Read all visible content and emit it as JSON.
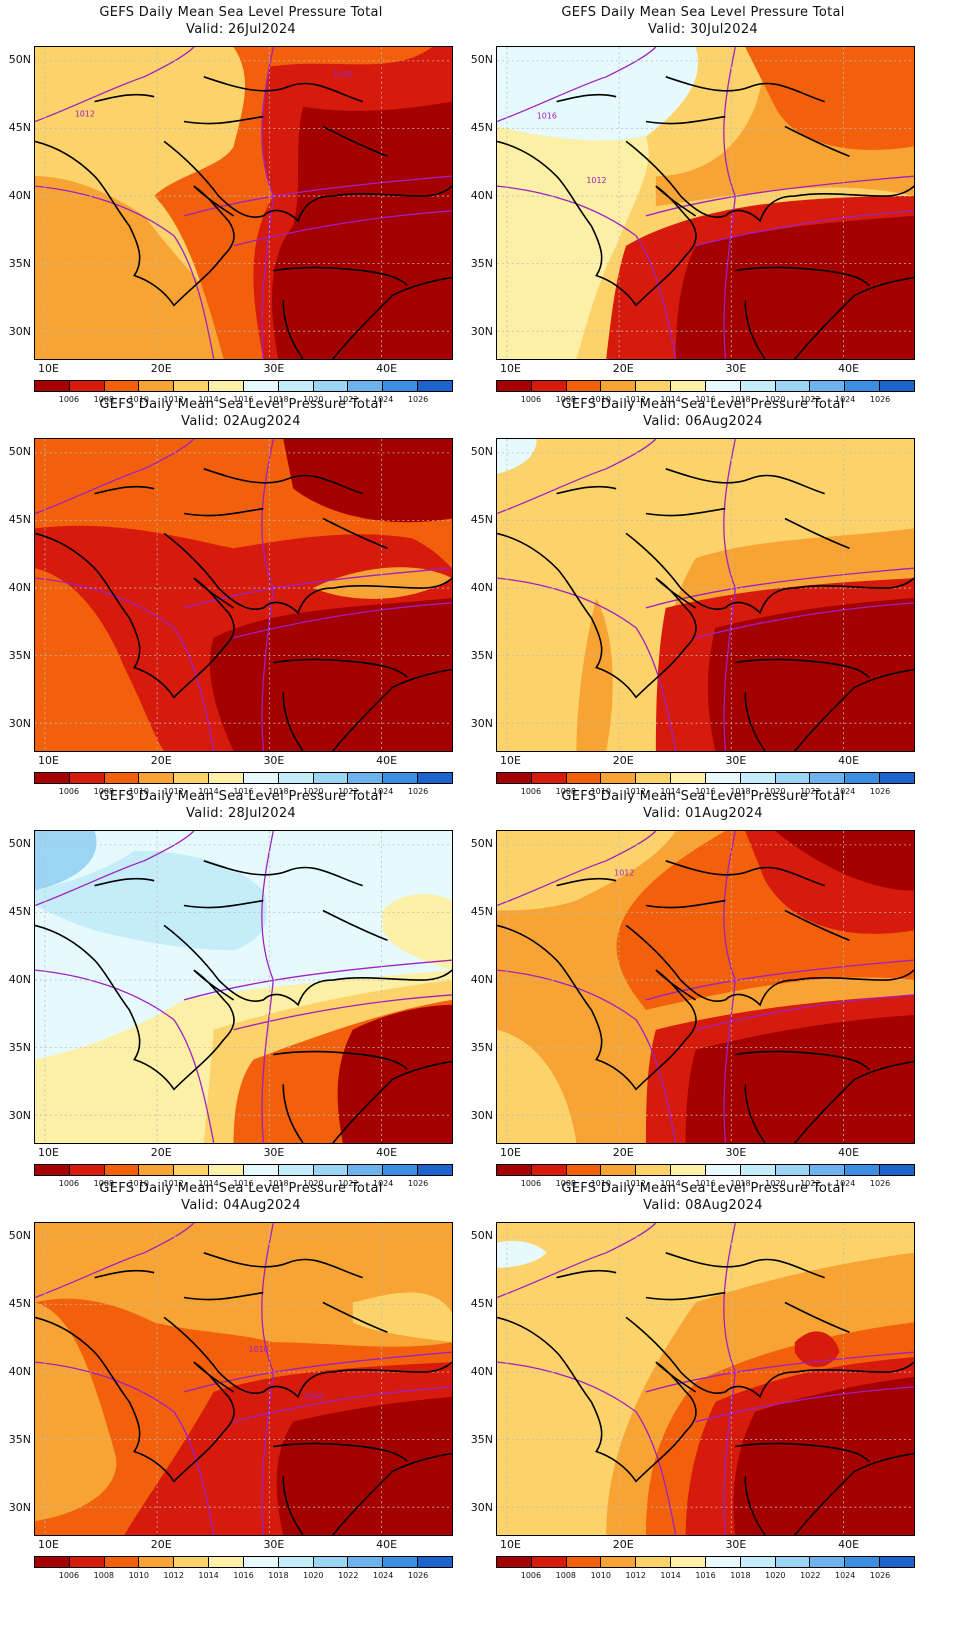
{
  "title": "GEFS Daily Mean Sea Level Pressure Total",
  "colorbar": {
    "labels": [
      "1006",
      "1008",
      "1010",
      "1012",
      "1014",
      "1016",
      "1018",
      "1020",
      "1022",
      "1024",
      "1026"
    ],
    "colors": [
      "#a50000",
      "#d61a0b",
      "#f2600c",
      "#f7a434",
      "#fcd26b",
      "#fcf0a6",
      "#e6fafd",
      "#c4ecf9",
      "#9bd5f3",
      "#6db2eb",
      "#3b8ee0",
      "#1c63cc"
    ]
  },
  "axes": {
    "lat_labels": [
      "50N",
      "45N",
      "40N",
      "35N",
      "30N"
    ],
    "lon_labels": [
      "10E",
      "20E",
      "30E",
      "40E"
    ]
  },
  "panels": [
    {
      "valid": "Valid: 26Jul2024",
      "scheme": 0,
      "contour_labels": [
        "1006",
        "1012"
      ]
    },
    {
      "valid": "Valid: 02Aug2024",
      "scheme": 1,
      "contour_labels": []
    },
    {
      "valid": "Valid: 28Jul2024",
      "scheme": 2,
      "contour_labels": []
    },
    {
      "valid": "Valid: 04Aug2024",
      "scheme": 3,
      "contour_labels": [
        "1010",
        "1008"
      ]
    },
    {
      "valid": "Valid: 30Jul2024",
      "scheme": 4,
      "contour_labels": [
        "1016",
        "1012"
      ]
    },
    {
      "valid": "Valid: 06Aug2024",
      "scheme": 5,
      "contour_labels": []
    },
    {
      "valid": "Valid: 01Aug2024",
      "scheme": 6,
      "contour_labels": [
        "1012"
      ]
    },
    {
      "valid": "Valid: 08Aug2024",
      "scheme": 7,
      "contour_labels": []
    }
  ]
}
